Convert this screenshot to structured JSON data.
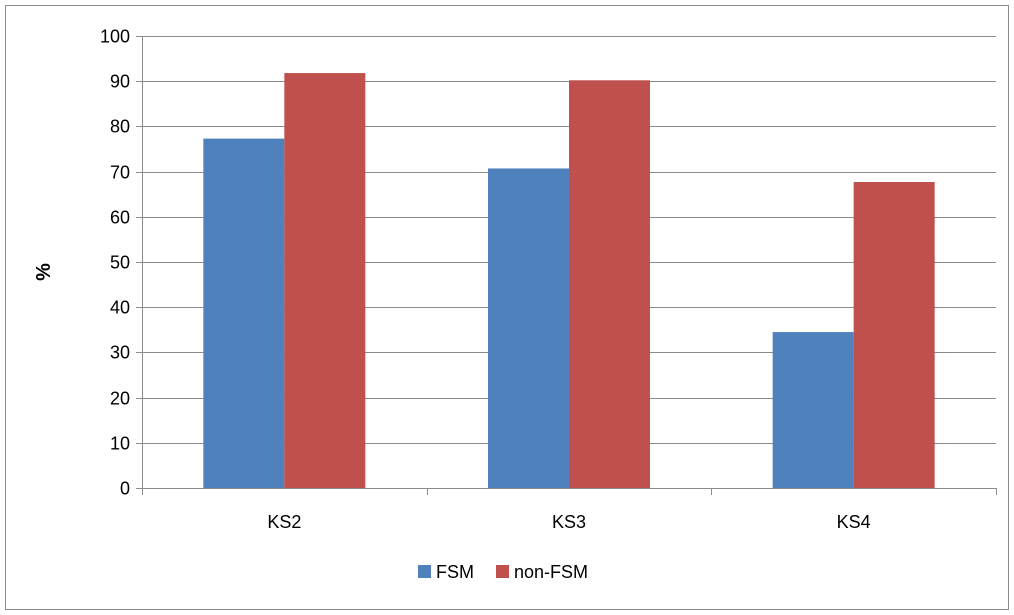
{
  "chart_data": {
    "type": "bar",
    "categories": [
      "KS2",
      "KS3",
      "KS4"
    ],
    "series": [
      {
        "name": "FSM",
        "values": [
          77.3,
          70.7,
          34.5
        ],
        "color": "#4F81BD"
      },
      {
        "name": "non-FSM",
        "values": [
          91.8,
          90.2,
          67.7
        ],
        "color": "#C0504D"
      }
    ],
    "ylabel": "%",
    "ylim": [
      0,
      100
    ],
    "yticks": [
      "0",
      "10",
      "20",
      "30",
      "40",
      "50",
      "60",
      "70",
      "80",
      "90",
      "100"
    ],
    "grid": true,
    "legend_position": "bottom"
  }
}
